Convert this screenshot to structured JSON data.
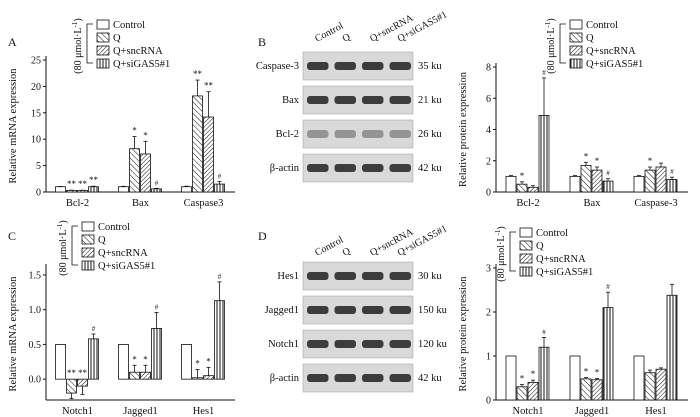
{
  "colors": {
    "ink": "#111111",
    "paper": "#ffffff",
    "blot_band": "#2a2a2a"
  },
  "groups": [
    "Control",
    "Q",
    "Q+sncRNA",
    "Q+siGAS5#1"
  ],
  "legend_unit": "(80 μmol·L",
  "legend_sup": "-1",
  "legend_close": ")",
  "chart_data": [
    {
      "panel": "A",
      "type": "bar",
      "ylabel": "Relative mRNA expression",
      "ylim": [
        0,
        25
      ],
      "yticks": [
        "0",
        "5",
        "10",
        "15",
        "20",
        "25"
      ],
      "categories": [
        "Bcl-2",
        "Bax",
        "Caspase3"
      ],
      "series": [
        {
          "name": "Control",
          "values": [
            1.0,
            1.0,
            1.0
          ],
          "errors": [
            0.05,
            0.08,
            0.1
          ]
        },
        {
          "name": "Q",
          "values": [
            0.3,
            8.2,
            18.2
          ],
          "errors": [
            0.05,
            2.3,
            3.0
          ]
        },
        {
          "name": "Q+sncRNA",
          "values": [
            0.3,
            7.2,
            14.2
          ],
          "errors": [
            0.05,
            2.4,
            4.8
          ]
        },
        {
          "name": "Q+siGAS5#1",
          "values": [
            1.0,
            0.6,
            1.5
          ],
          "errors": [
            0.1,
            0.1,
            0.5
          ]
        }
      ],
      "annotations": [
        [
          "**",
          "**",
          "**"
        ],
        [
          "*",
          "*",
          "#"
        ],
        [
          "**",
          "**",
          "#"
        ]
      ]
    },
    {
      "panel": "B",
      "type": "bar",
      "ylabel": "Relative protein expression",
      "ylim": [
        0,
        8
      ],
      "yticks": [
        "0",
        "2",
        "4",
        "6",
        "8"
      ],
      "categories": [
        "Bcl-2",
        "Bax",
        "Caspase-3"
      ],
      "series": [
        {
          "name": "Control",
          "values": [
            1.0,
            1.0,
            1.0
          ],
          "errors": [
            0.05,
            0.05,
            0.05
          ]
        },
        {
          "name": "Q",
          "values": [
            0.5,
            1.7,
            1.4
          ],
          "errors": [
            0.15,
            0.2,
            0.2
          ]
        },
        {
          "name": "Q+sncRNA",
          "values": [
            0.3,
            1.4,
            1.6
          ],
          "errors": [
            0.1,
            0.2,
            0.25
          ]
        },
        {
          "name": "Q+siGAS5#1",
          "values": [
            4.9,
            0.7,
            0.8
          ],
          "errors": [
            2.4,
            0.15,
            0.15
          ]
        }
      ],
      "annotations": [
        [
          "*",
          "#"
        ],
        [
          "*",
          "*",
          "#"
        ],
        [
          "*",
          "#"
        ]
      ]
    },
    {
      "panel": "C",
      "type": "bar",
      "ylabel": "Relative mRNA expression",
      "ylim": [
        -0.3,
        1.6
      ],
      "yticks": [
        "0.0",
        "0.5",
        "1.0",
        "1.5"
      ],
      "categories": [
        "Notch1",
        "Jagged1",
        "Hes1"
      ],
      "series": [
        {
          "name": "Control",
          "values": [
            0.5,
            0.5,
            0.5
          ],
          "errors": [
            0.0,
            0.0,
            0.0
          ]
        },
        {
          "name": "Q",
          "values": [
            -0.2,
            0.1,
            0.02
          ],
          "errors": [
            0.08,
            0.1,
            0.12
          ]
        },
        {
          "name": "Q+sncRNA",
          "values": [
            -0.1,
            0.1,
            0.05
          ],
          "errors": [
            0.12,
            0.1,
            0.12
          ]
        },
        {
          "name": "Q+siGAS5#1",
          "values": [
            0.58,
            0.73,
            1.13
          ],
          "errors": [
            0.07,
            0.23,
            0.27
          ]
        }
      ],
      "annotations": [
        [
          "**",
          "**",
          "#"
        ],
        [
          "*",
          "*",
          "#"
        ],
        [
          "*",
          "*",
          "#"
        ]
      ]
    },
    {
      "panel": "D",
      "type": "bar",
      "ylabel": "Relative protein expression",
      "ylim": [
        0,
        3
      ],
      "yticks": [
        "0",
        "1",
        "2",
        "3"
      ],
      "categories": [
        "Notch1",
        "Jagged1",
        "Hes1"
      ],
      "series": [
        {
          "name": "Control",
          "values": [
            1.0,
            1.0,
            1.0
          ],
          "errors": [
            0.0,
            0.0,
            0.0
          ]
        },
        {
          "name": "Q",
          "values": [
            0.3,
            0.48,
            0.62
          ],
          "errors": [
            0.05,
            0.03,
            0.06
          ]
        },
        {
          "name": "Q+sncRNA",
          "values": [
            0.4,
            0.46,
            0.7
          ],
          "errors": [
            0.05,
            0.03,
            0.03
          ]
        },
        {
          "name": "Q+siGAS5#1",
          "values": [
            1.2,
            2.1,
            2.38
          ],
          "errors": [
            0.22,
            0.35,
            0.25
          ]
        }
      ],
      "annotations": [
        [
          "*",
          "*",
          "#"
        ],
        [
          "*",
          "*",
          "#"
        ],
        []
      ]
    }
  ],
  "blot_b": {
    "panel": "B",
    "lanes": [
      "Control",
      "Q",
      "Q+sncRNA",
      "Q+siGAS5#1"
    ],
    "rows": [
      {
        "protein": "Caspase-3",
        "size": "35 ku"
      },
      {
        "protein": "Bax",
        "size": "21 ku"
      },
      {
        "protein": "Bcl-2",
        "size": "26 ku"
      },
      {
        "protein": "β-actin",
        "size": "42 ku"
      }
    ]
  },
  "blot_d": {
    "panel": "D",
    "lanes": [
      "Control",
      "Q",
      "Q+sncRNA",
      "Q+siGAS5#1"
    ],
    "rows": [
      {
        "protein": "Hes1",
        "size": "30 ku"
      },
      {
        "protein": "Jagged1",
        "size": "150 ku"
      },
      {
        "protein": "Notch1",
        "size": "120 ku"
      },
      {
        "protein": "β-actin",
        "size": "42 ku"
      }
    ]
  }
}
